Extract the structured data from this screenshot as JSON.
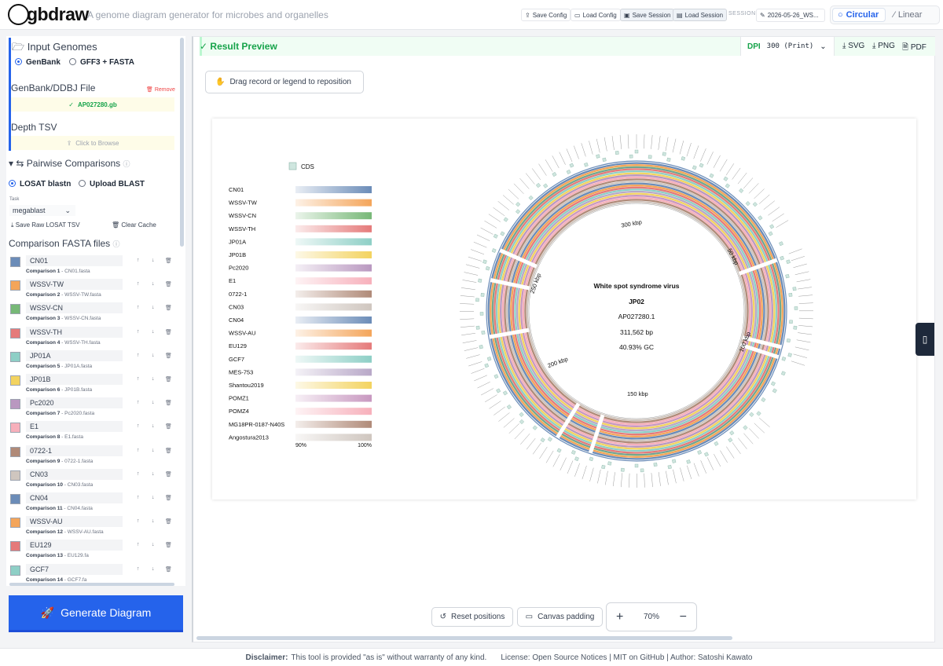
{
  "app": {
    "logo_text": "gbdraw",
    "tagline": "A genome diagram generator for microbes and organelles"
  },
  "header": {
    "save_config": "Save Config",
    "load_config": "Load Config",
    "save_session": "Save Session",
    "load_session": "Load Session",
    "session_label": "SESSION",
    "session_name": "2026-05-26_WS...",
    "mode_circular": "Circular",
    "mode_linear": "Linear"
  },
  "sidebar": {
    "input_genomes": "Input Genomes",
    "genbank": "GenBank",
    "gff3": "GFF3 + FASTA",
    "genbank_file_label": "GenBank/DDBJ File",
    "remove": "Remove",
    "loaded_file": "AP027280.gb",
    "depth_label": "Depth TSV",
    "browse": "Click to Browse",
    "pairwise": "Pairwise Comparisons",
    "losat": "LOSAT blastn",
    "upload_blast": "Upload BLAST",
    "task_label": "Task",
    "task_value": "megablast",
    "save_raw": "Save Raw LOSAT TSV",
    "clear_cache": "Clear Cache",
    "comparison_files": "Comparison FASTA files",
    "comparisons": [
      {
        "name": "CN01",
        "label": "Comparison 1",
        "file": "CN01.fasta",
        "color": "#6b8cb8"
      },
      {
        "name": "WSSV-TW",
        "label": "Comparison 2",
        "file": "WSSV-TW.fasta",
        "color": "#f4a55a"
      },
      {
        "name": "WSSV-CN",
        "label": "Comparison 3",
        "file": "WSSV-CN.fasta",
        "color": "#77b877"
      },
      {
        "name": "WSSV-TH",
        "label": "Comparison 4",
        "file": "WSSV-TH.fasta",
        "color": "#e57a7a"
      },
      {
        "name": "JP01A",
        "label": "Comparison 5",
        "file": "JP01A.fasta",
        "color": "#8ecfc6"
      },
      {
        "name": "JP01B",
        "label": "Comparison 6",
        "file": "JP01B.fasta",
        "color": "#f3d35f"
      },
      {
        "name": "Pc2020",
        "label": "Comparison 7",
        "file": "Pc2020.fasta",
        "color": "#b998c0"
      },
      {
        "name": "E1",
        "label": "Comparison 8",
        "file": "E1.fasta",
        "color": "#f7b0bb"
      },
      {
        "name": "0722-1",
        "label": "Comparison 9",
        "file": "0722-1.fasta",
        "color": "#b08a78"
      },
      {
        "name": "CN03",
        "label": "Comparison 10",
        "file": "CN03.fasta",
        "color": "#cfc6bf"
      },
      {
        "name": "CN04",
        "label": "Comparison 11",
        "file": "CN04.fasta",
        "color": "#6b8cb8"
      },
      {
        "name": "WSSV-AU",
        "label": "Comparison 12",
        "file": "WSSV-AU.fasta",
        "color": "#f4a55a"
      },
      {
        "name": "EU129",
        "label": "Comparison 13",
        "file": "EU129.fa",
        "color": "#e57a7a"
      },
      {
        "name": "GCF7",
        "label": "Comparison 14",
        "file": "GCF7.fa",
        "color": "#8ecfc6"
      }
    ],
    "generate": "Generate Diagram"
  },
  "main": {
    "result_preview": "Result Preview",
    "dpi_label": "DPI",
    "dpi_value": "300 (Print)",
    "svg": "SVG",
    "png": "PNG",
    "pdf": "PDF",
    "drag_hint": "Drag record or legend to reposition",
    "reset_positions": "Reset positions",
    "canvas_padding": "Canvas padding",
    "zoom": "70%"
  },
  "diagram": {
    "cds_legend": "CDS",
    "title_line1": "White spot syndrome virus",
    "title_line2": "JP02",
    "accession": "AP027280.1",
    "length": "311,562 bp",
    "gc": "40.93% GC",
    "ticks": [
      "50 kbp",
      "100 kbp",
      "150 kbp",
      "200 kbp",
      "250 kbp",
      "300 kbp"
    ],
    "identity_min": "90%",
    "identity_max": "100%",
    "legend": [
      {
        "name": "CN01",
        "color": "#6b8cb8"
      },
      {
        "name": "WSSV-TW",
        "color": "#f4a55a"
      },
      {
        "name": "WSSV-CN",
        "color": "#77b877"
      },
      {
        "name": "WSSV-TH",
        "color": "#e57a7a"
      },
      {
        "name": "JP01A",
        "color": "#8ecfc6"
      },
      {
        "name": "JP01B",
        "color": "#f3d35f"
      },
      {
        "name": "Pc2020",
        "color": "#b998c0"
      },
      {
        "name": "E1",
        "color": "#f7b0bb"
      },
      {
        "name": "0722-1",
        "color": "#b08a78"
      },
      {
        "name": "CN03",
        "color": "#cfc6bf"
      },
      {
        "name": "CN04",
        "color": "#6b8cb8"
      },
      {
        "name": "WSSV-AU",
        "color": "#f4a55a"
      },
      {
        "name": "EU129",
        "color": "#e57a7a"
      },
      {
        "name": "GCF7",
        "color": "#8ecfc6"
      },
      {
        "name": "MES-753",
        "color": "#b8a8c8"
      },
      {
        "name": "Shantou2019",
        "color": "#f3d35f"
      },
      {
        "name": "POMZ1",
        "color": "#c898c0"
      },
      {
        "name": "POMZ4",
        "color": "#f7b0bb"
      },
      {
        "name": "MG18PR-0187-N40S",
        "color": "#b08a78"
      },
      {
        "name": "Angostura2013",
        "color": "#cfc6bf"
      }
    ]
  },
  "footer": {
    "disclaimer_label": "Disclaimer:",
    "disclaimer_text": "This tool is provided \"as is\" without warranty of any kind.",
    "license": "License: Open Source Notices | MIT on GitHub | Author: Satoshi Kawato"
  }
}
